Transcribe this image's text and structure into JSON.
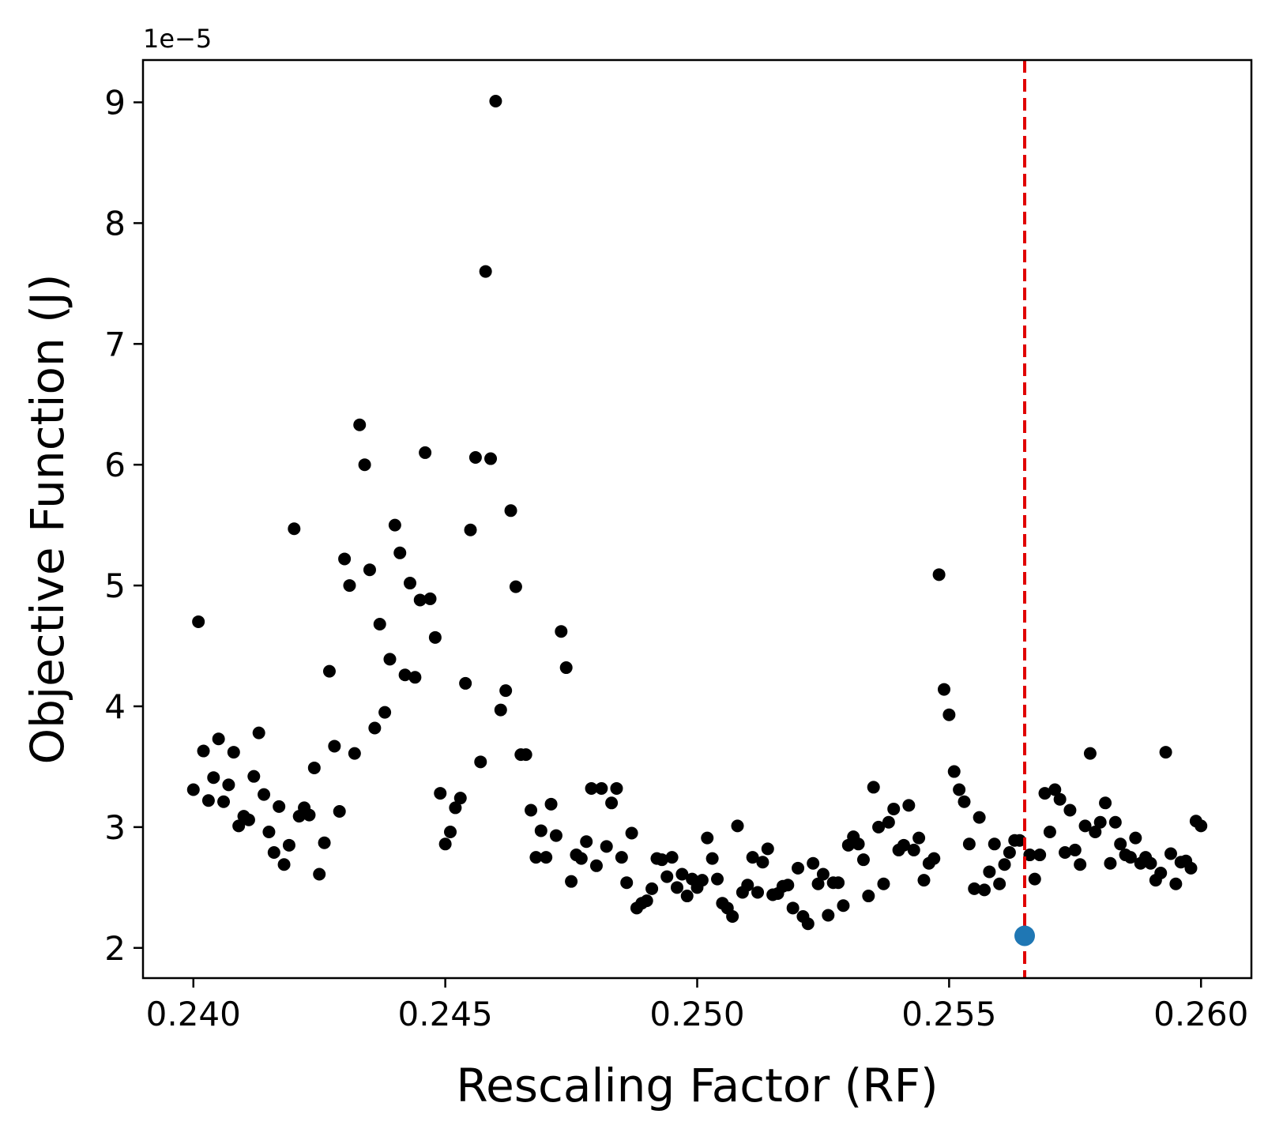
{
  "chart_data": {
    "type": "scatter",
    "title": "",
    "xlabel": "Rescaling Factor (RF)",
    "ylabel": "Objective Function (J)",
    "y_offset_label": "1e−5",
    "y_scale_note": "y values in units of 1e-5",
    "xlim": [
      0.239,
      0.261
    ],
    "ylim": [
      1.75,
      9.35
    ],
    "xticks": [
      0.24,
      0.245,
      0.25,
      0.255,
      0.26
    ],
    "xtick_labels": [
      "0.240",
      "0.245",
      "0.250",
      "0.255",
      "0.260"
    ],
    "yticks": [
      2,
      3,
      4,
      5,
      6,
      7,
      8,
      9
    ],
    "ytick_labels": [
      "2",
      "3",
      "4",
      "5",
      "6",
      "7",
      "8",
      "9"
    ],
    "grid": false,
    "colors": {
      "points": "#000000",
      "highlight": "#1f77b4",
      "vline": "#e00000"
    },
    "vline": {
      "x": 0.2565,
      "style": "dashed"
    },
    "highlight_point": {
      "x": 0.2565,
      "y": 2.1
    },
    "series": [
      {
        "points": [
          [
            0.24,
            3.31
          ],
          [
            0.2401,
            4.7
          ],
          [
            0.2402,
            3.63
          ],
          [
            0.2403,
            3.22
          ],
          [
            0.2404,
            3.41
          ],
          [
            0.2405,
            3.73
          ],
          [
            0.2406,
            3.21
          ],
          [
            0.2407,
            3.35
          ],
          [
            0.2408,
            3.62
          ],
          [
            0.2409,
            3.01
          ],
          [
            0.241,
            3.09
          ],
          [
            0.2411,
            3.06
          ],
          [
            0.2412,
            3.42
          ],
          [
            0.2413,
            3.78
          ],
          [
            0.2414,
            3.27
          ],
          [
            0.2415,
            2.96
          ],
          [
            0.2416,
            2.79
          ],
          [
            0.2417,
            3.17
          ],
          [
            0.2418,
            2.69
          ],
          [
            0.2419,
            2.85
          ],
          [
            0.242,
            5.47
          ],
          [
            0.2421,
            3.09
          ],
          [
            0.2422,
            3.16
          ],
          [
            0.2423,
            3.1
          ],
          [
            0.2424,
            3.49
          ],
          [
            0.2425,
            2.61
          ],
          [
            0.2426,
            2.87
          ],
          [
            0.2427,
            4.29
          ],
          [
            0.2428,
            3.67
          ],
          [
            0.2429,
            3.13
          ],
          [
            0.243,
            5.22
          ],
          [
            0.2431,
            5.0
          ],
          [
            0.2432,
            3.61
          ],
          [
            0.2433,
            6.33
          ],
          [
            0.2434,
            6.0
          ],
          [
            0.2435,
            5.13
          ],
          [
            0.2436,
            3.82
          ],
          [
            0.2437,
            4.68
          ],
          [
            0.2438,
            3.95
          ],
          [
            0.2439,
            4.39
          ],
          [
            0.244,
            5.5
          ],
          [
            0.2441,
            5.27
          ],
          [
            0.2442,
            4.26
          ],
          [
            0.2443,
            5.02
          ],
          [
            0.2444,
            4.24
          ],
          [
            0.2445,
            4.88
          ],
          [
            0.2446,
            6.1
          ],
          [
            0.2447,
            4.89
          ],
          [
            0.2448,
            4.57
          ],
          [
            0.2449,
            3.28
          ],
          [
            0.245,
            2.86
          ],
          [
            0.2451,
            2.96
          ],
          [
            0.2452,
            3.16
          ],
          [
            0.2453,
            3.24
          ],
          [
            0.2454,
            4.19
          ],
          [
            0.2455,
            5.46
          ],
          [
            0.2456,
            6.06
          ],
          [
            0.2457,
            3.54
          ],
          [
            0.2458,
            7.6
          ],
          [
            0.2459,
            6.05
          ],
          [
            0.246,
            9.01
          ],
          [
            0.2461,
            3.97
          ],
          [
            0.2462,
            4.13
          ],
          [
            0.2463,
            5.62
          ],
          [
            0.2464,
            4.99
          ],
          [
            0.2465,
            3.6
          ],
          [
            0.2466,
            3.6
          ],
          [
            0.2467,
            3.14
          ],
          [
            0.2468,
            2.75
          ],
          [
            0.2469,
            2.97
          ],
          [
            0.247,
            2.75
          ],
          [
            0.2471,
            3.19
          ],
          [
            0.2472,
            2.93
          ],
          [
            0.2473,
            4.62
          ],
          [
            0.2474,
            4.32
          ],
          [
            0.2475,
            2.55
          ],
          [
            0.2476,
            2.77
          ],
          [
            0.2477,
            2.74
          ],
          [
            0.2478,
            2.88
          ],
          [
            0.2479,
            3.32
          ],
          [
            0.248,
            2.68
          ],
          [
            0.2481,
            3.32
          ],
          [
            0.2482,
            2.84
          ],
          [
            0.2483,
            3.2
          ],
          [
            0.2484,
            3.32
          ],
          [
            0.2485,
            2.75
          ],
          [
            0.2486,
            2.54
          ],
          [
            0.2487,
            2.95
          ],
          [
            0.2488,
            2.33
          ],
          [
            0.2489,
            2.37
          ],
          [
            0.249,
            2.39
          ],
          [
            0.2491,
            2.49
          ],
          [
            0.2492,
            2.74
          ],
          [
            0.2493,
            2.73
          ],
          [
            0.2494,
            2.59
          ],
          [
            0.2495,
            2.75
          ],
          [
            0.2496,
            2.5
          ],
          [
            0.2497,
            2.61
          ],
          [
            0.2498,
            2.43
          ],
          [
            0.2499,
            2.57
          ],
          [
            0.25,
            2.5
          ],
          [
            0.2501,
            2.56
          ],
          [
            0.2502,
            2.91
          ],
          [
            0.2503,
            2.74
          ],
          [
            0.2504,
            2.57
          ],
          [
            0.2505,
            2.37
          ],
          [
            0.2506,
            2.33
          ],
          [
            0.2507,
            2.26
          ],
          [
            0.2508,
            3.01
          ],
          [
            0.2509,
            2.46
          ],
          [
            0.251,
            2.52
          ],
          [
            0.2511,
            2.75
          ],
          [
            0.2512,
            2.46
          ],
          [
            0.2513,
            2.71
          ],
          [
            0.2514,
            2.82
          ],
          [
            0.2515,
            2.44
          ],
          [
            0.2516,
            2.45
          ],
          [
            0.2517,
            2.51
          ],
          [
            0.2518,
            2.52
          ],
          [
            0.2519,
            2.33
          ],
          [
            0.252,
            2.66
          ],
          [
            0.2521,
            2.26
          ],
          [
            0.2522,
            2.2
          ],
          [
            0.2523,
            2.7
          ],
          [
            0.2524,
            2.53
          ],
          [
            0.2525,
            2.61
          ],
          [
            0.2526,
            2.27
          ],
          [
            0.2527,
            2.54
          ],
          [
            0.2528,
            2.54
          ],
          [
            0.2529,
            2.35
          ],
          [
            0.253,
            2.85
          ],
          [
            0.2531,
            2.92
          ],
          [
            0.2532,
            2.86
          ],
          [
            0.2533,
            2.73
          ],
          [
            0.2534,
            2.43
          ],
          [
            0.2535,
            3.33
          ],
          [
            0.2536,
            3.0
          ],
          [
            0.2537,
            2.53
          ],
          [
            0.2538,
            3.04
          ],
          [
            0.2539,
            3.15
          ],
          [
            0.254,
            2.81
          ],
          [
            0.2541,
            2.85
          ],
          [
            0.2542,
            3.18
          ],
          [
            0.2543,
            2.81
          ],
          [
            0.2544,
            2.91
          ],
          [
            0.2545,
            2.56
          ],
          [
            0.2546,
            2.7
          ],
          [
            0.2547,
            2.74
          ],
          [
            0.2548,
            5.09
          ],
          [
            0.2549,
            4.14
          ],
          [
            0.255,
            3.93
          ],
          [
            0.2551,
            3.46
          ],
          [
            0.2552,
            3.31
          ],
          [
            0.2553,
            3.21
          ],
          [
            0.2554,
            2.86
          ],
          [
            0.2555,
            2.49
          ],
          [
            0.2556,
            3.08
          ],
          [
            0.2557,
            2.48
          ],
          [
            0.2558,
            2.63
          ],
          [
            0.2559,
            2.86
          ],
          [
            0.256,
            2.53
          ],
          [
            0.2561,
            2.69
          ],
          [
            0.2562,
            2.79
          ],
          [
            0.2563,
            2.89
          ],
          [
            0.2564,
            2.89
          ],
          [
            0.2566,
            2.77
          ],
          [
            0.2567,
            2.57
          ],
          [
            0.2568,
            2.77
          ],
          [
            0.2569,
            3.28
          ],
          [
            0.257,
            2.96
          ],
          [
            0.2571,
            3.31
          ],
          [
            0.2572,
            3.23
          ],
          [
            0.2573,
            2.79
          ],
          [
            0.2574,
            3.14
          ],
          [
            0.2575,
            2.81
          ],
          [
            0.2576,
            2.69
          ],
          [
            0.2577,
            3.01
          ],
          [
            0.2578,
            3.61
          ],
          [
            0.2579,
            2.96
          ],
          [
            0.258,
            3.04
          ],
          [
            0.2581,
            3.2
          ],
          [
            0.2582,
            2.7
          ],
          [
            0.2583,
            3.04
          ],
          [
            0.2584,
            2.86
          ],
          [
            0.2585,
            2.77
          ],
          [
            0.2586,
            2.75
          ],
          [
            0.2587,
            2.91
          ],
          [
            0.2588,
            2.7
          ],
          [
            0.2589,
            2.75
          ],
          [
            0.259,
            2.7
          ],
          [
            0.2591,
            2.56
          ],
          [
            0.2592,
            2.62
          ],
          [
            0.2593,
            3.62
          ],
          [
            0.2594,
            2.78
          ],
          [
            0.2595,
            2.53
          ],
          [
            0.2596,
            2.71
          ],
          [
            0.2597,
            2.72
          ],
          [
            0.2598,
            2.66
          ],
          [
            0.2599,
            3.05
          ],
          [
            0.26,
            3.01
          ]
        ]
      }
    ]
  }
}
